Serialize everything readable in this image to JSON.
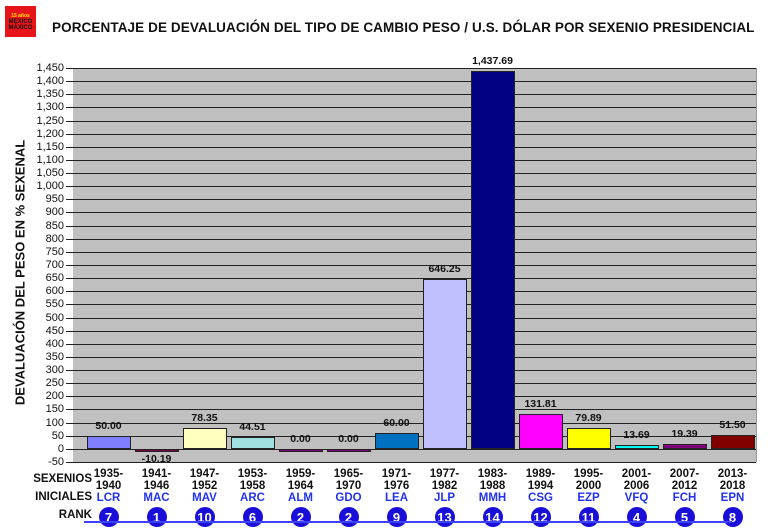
{
  "logo": {
    "line1": "15 años",
    "line2": "MEXICO",
    "line3": "MÁXICO"
  },
  "chart_data": {
    "type": "bar",
    "title": "PORCENTAJE DE DEVALUACIÓN DEL TIPO DE CAMBIO PESO / U.S. DÓLAR POR SEXENIO PRESIDENCIAL",
    "xlabel": "SEXENIOS",
    "ylabel": "DEVALUACIÓN DEL PESO EN % SEXENAL",
    "ylim": [
      -50,
      1450
    ],
    "ytick_step": 50,
    "grid": true,
    "legend": "none",
    "categories": [
      "1935-1940",
      "1941-1946",
      "1947-1952",
      "1953-1958",
      "1959-1964",
      "1965-1970",
      "1971-1976",
      "1977-1982",
      "1983-1988",
      "1989-1994",
      "1995-2000",
      "2001-2006",
      "2007-2012",
      "2013-2018"
    ],
    "category_top": [
      "1935-",
      "1941-",
      "1947-",
      "1953-",
      "1959-",
      "1965-",
      "1971-",
      "1977-",
      "1983-",
      "1989-",
      "1995-",
      "2001-",
      "2007-",
      "2013-"
    ],
    "category_bottom": [
      "1940",
      "1946",
      "1952",
      "1958",
      "1964",
      "1970",
      "1976",
      "1982",
      "1988",
      "1994",
      "2000",
      "2006",
      "2012",
      "2018"
    ],
    "values": [
      50.0,
      -10.19,
      78.35,
      44.51,
      0.0,
      0.0,
      60.0,
      646.25,
      1437.69,
      131.81,
      79.89,
      13.69,
      19.39,
      51.5
    ],
    "value_labels": [
      "50.00",
      "-10.19",
      "78.35",
      "44.51",
      "0.00",
      "0.00",
      "60.00",
      "646.25",
      "1,437.69",
      "131.81",
      "79.89",
      "13.69",
      "19.39",
      "51.50"
    ],
    "bar_colors": [
      "#8080ff",
      "#800040",
      "#ffffc0",
      "#a0e0e0",
      "#800080",
      "#800080",
      "#0070c0",
      "#c0c0ff",
      "#000080",
      "#ff00ff",
      "#ffff00",
      "#00ffff",
      "#800080",
      "#800000"
    ],
    "initials": [
      "LCR",
      "MAC",
      "MAV",
      "ARC",
      "ALM",
      "GDO",
      "LEA",
      "JLP",
      "MMH",
      "CSG",
      "EZP",
      "VFQ",
      "FCH",
      "EPN"
    ],
    "rank": [
      "7",
      "1",
      "10",
      "6",
      "2",
      "2",
      "9",
      "13",
      "14",
      "12",
      "11",
      "4",
      "5",
      "8"
    ]
  },
  "row_labels": {
    "sexenios": "SEXENIOS",
    "iniciales": "INICIALES",
    "rank": "RANK"
  }
}
